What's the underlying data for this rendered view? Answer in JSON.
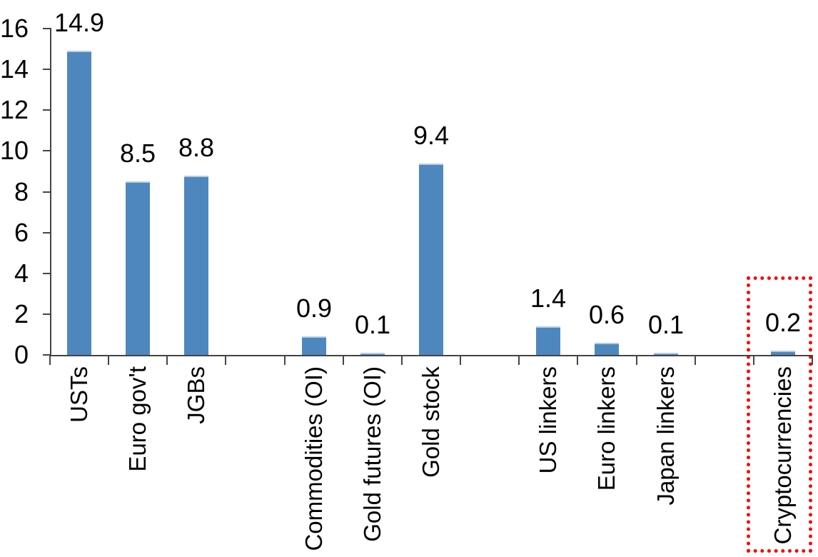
{
  "chart_data": {
    "type": "bar",
    "title": "",
    "xlabel": "",
    "ylabel": "",
    "categories": [
      "USTs",
      "Euro gov't",
      "JGBs",
      "Commodities (OI)",
      "Gold futures (OI)",
      "Gold stock",
      "US linkers",
      "Euro linkers",
      "Japan linkers",
      "Cryptocurrencies"
    ],
    "values": [
      14.9,
      8.5,
      8.8,
      0.9,
      0.1,
      9.4,
      1.4,
      0.6,
      0.1,
      0.2
    ],
    "value_labels": [
      "14.9",
      "8.5",
      "8.8",
      "0.9",
      "0.1",
      "9.4",
      "1.4",
      "0.6",
      "0.1",
      "0.2"
    ],
    "slot_indices": [
      0,
      1,
      2,
      4,
      5,
      6,
      8,
      9,
      10,
      12
    ],
    "total_slots": 13,
    "ylim": [
      0,
      16
    ],
    "yticks": [
      0,
      2,
      4,
      6,
      8,
      10,
      12,
      14,
      16
    ],
    "ytick_labels": [
      "0",
      "2",
      "4",
      "6",
      "8",
      "10",
      "12",
      "14",
      "16"
    ],
    "grid": false,
    "legend": "none",
    "category_label_rotation_deg": 90,
    "bar_color": "#4e87be",
    "bar_top_edge_color": "#b7cde2",
    "axis_color": "#454545",
    "text_color": "#000000",
    "highlight": {
      "category": "Cryptocurrencies",
      "value_label": "0.2",
      "box_color": "#fe0000",
      "style": "dotted-rectangle"
    }
  }
}
